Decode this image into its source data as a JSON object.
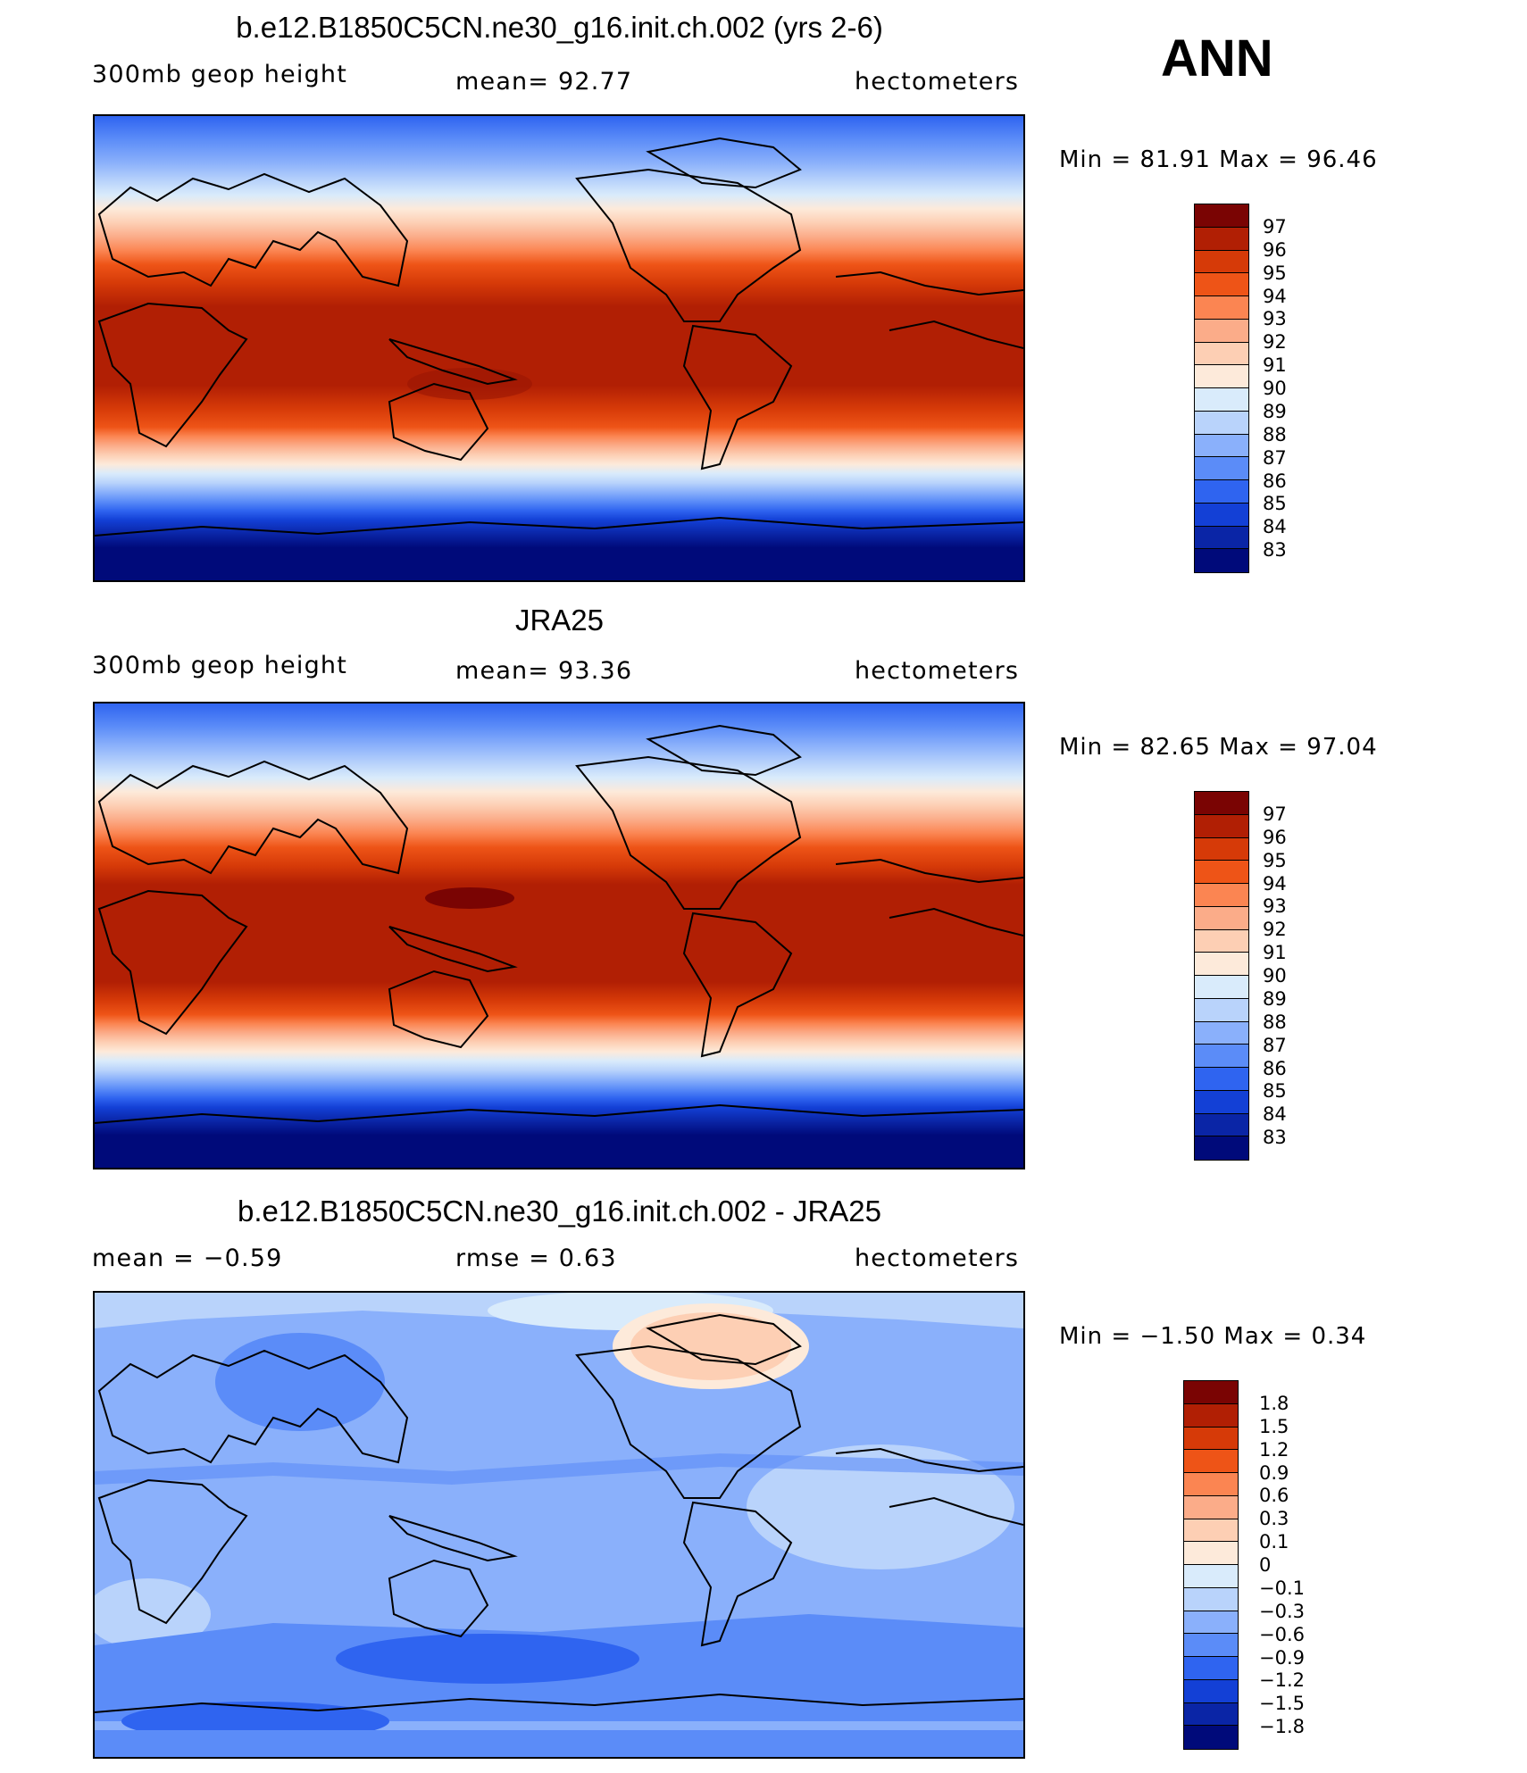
{
  "season": "ANN",
  "panels": [
    {
      "id": "model",
      "title": "b.e12.B1850C5CN.ne30_g16.init.ch.002 (yrs 2-6)",
      "left_text": "300mb  geop  height",
      "center_text": "mean=   92.77",
      "units": "hectometers",
      "minmax": "Min  =    81.91  Max  =    96.46",
      "colorbar_labels": [
        "97",
        "96",
        "95",
        "94",
        "93",
        "92",
        "91",
        "90",
        "89",
        "88",
        "87",
        "86",
        "85",
        "84",
        "83"
      ],
      "colorbar_colors": [
        "#7a0403",
        "#b11f04",
        "#d63a08",
        "#ee5417",
        "#fb8552",
        "#fbac89",
        "#fdcfb4",
        "#fdeada",
        "#d9ebfb",
        "#b9d3fb",
        "#8ab0fb",
        "#5b8cf8",
        "#2f64f0",
        "#1340d6",
        "#0a25a6",
        "#000a7a"
      ]
    },
    {
      "id": "obs",
      "title": "JRA25",
      "left_text": "300mb  geop  height",
      "center_text": "mean=   93.36",
      "units": "hectometers",
      "minmax": "Min  =    82.65  Max  =    97.04",
      "colorbar_labels": [
        "97",
        "96",
        "95",
        "94",
        "93",
        "92",
        "91",
        "90",
        "89",
        "88",
        "87",
        "86",
        "85",
        "84",
        "83"
      ],
      "colorbar_colors": [
        "#7a0403",
        "#b11f04",
        "#d63a08",
        "#ee5417",
        "#fb8552",
        "#fbac89",
        "#fdcfb4",
        "#fdeada",
        "#d9ebfb",
        "#b9d3fb",
        "#8ab0fb",
        "#5b8cf8",
        "#2f64f0",
        "#1340d6",
        "#0a25a6",
        "#000a7a"
      ]
    },
    {
      "id": "diff",
      "title": "b.e12.B1850C5CN.ne30_g16.init.ch.002 - JRA25",
      "left_text": "mean  =    −0.59",
      "center_text": "rmse  =     0.63",
      "units": "hectometers",
      "minmax": "Min  =   −1.50  Max  =     0.34",
      "colorbar_labels": [
        "1.8",
        "1.5",
        "1.2",
        "0.9",
        "0.6",
        "0.3",
        "0.1",
        "0",
        "−0.1",
        "−0.3",
        "−0.6",
        "−0.9",
        "−1.2",
        "−1.5",
        "−1.8"
      ],
      "colorbar_colors": [
        "#7a0403",
        "#b11f04",
        "#d63a08",
        "#ee5417",
        "#fb8552",
        "#fbac89",
        "#fdcfb4",
        "#fdeada",
        "#d9ebfb",
        "#b9d3fb",
        "#8ab0fb",
        "#5b8cf8",
        "#2f64f0",
        "#1340d6",
        "#0a25a6",
        "#000a7a"
      ]
    }
  ]
}
